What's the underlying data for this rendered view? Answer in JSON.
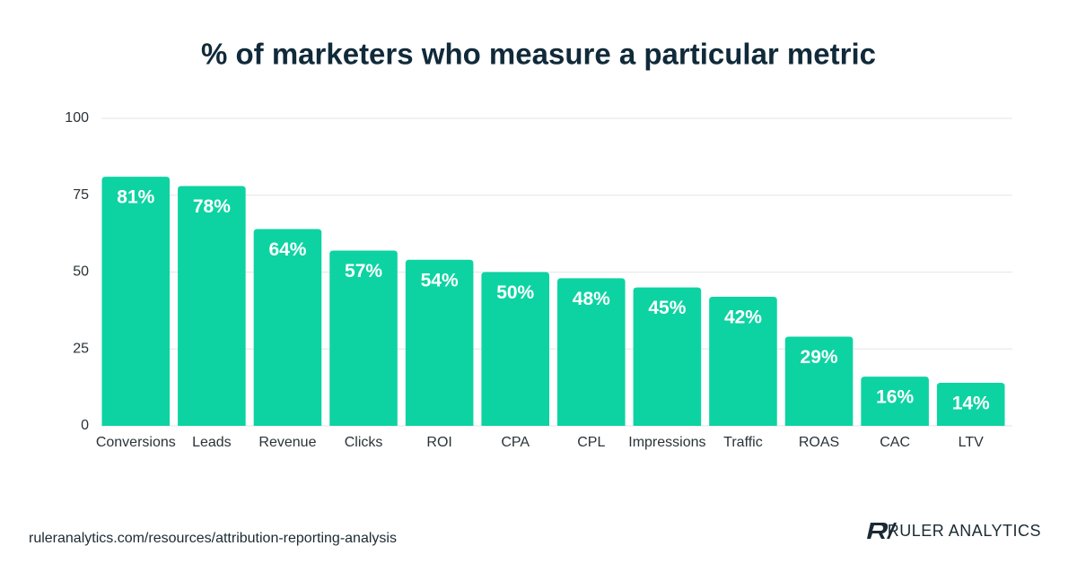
{
  "chart_data": {
    "type": "bar",
    "title": "% of marketers who measure a particular metric",
    "categories": [
      "Conversions",
      "Leads",
      "Revenue",
      "Clicks",
      "ROI",
      "CPA",
      "CPL",
      "Impressions",
      "Traffic",
      "ROAS",
      "CAC",
      "LTV"
    ],
    "values": [
      81,
      78,
      64,
      57,
      54,
      50,
      48,
      45,
      42,
      29,
      16,
      14
    ],
    "value_labels": [
      "81%",
      "78%",
      "64%",
      "57%",
      "54%",
      "50%",
      "48%",
      "45%",
      "42%",
      "29%",
      "16%",
      "14%"
    ],
    "color": "#0dd3a2",
    "ylim": [
      0,
      100
    ],
    "yticks": [
      0,
      25,
      50,
      75,
      100
    ],
    "grid": true,
    "source": "ruleranalytics.com/resources/attribution-reporting-analysis",
    "brand": "RULER ANALYTICS"
  }
}
